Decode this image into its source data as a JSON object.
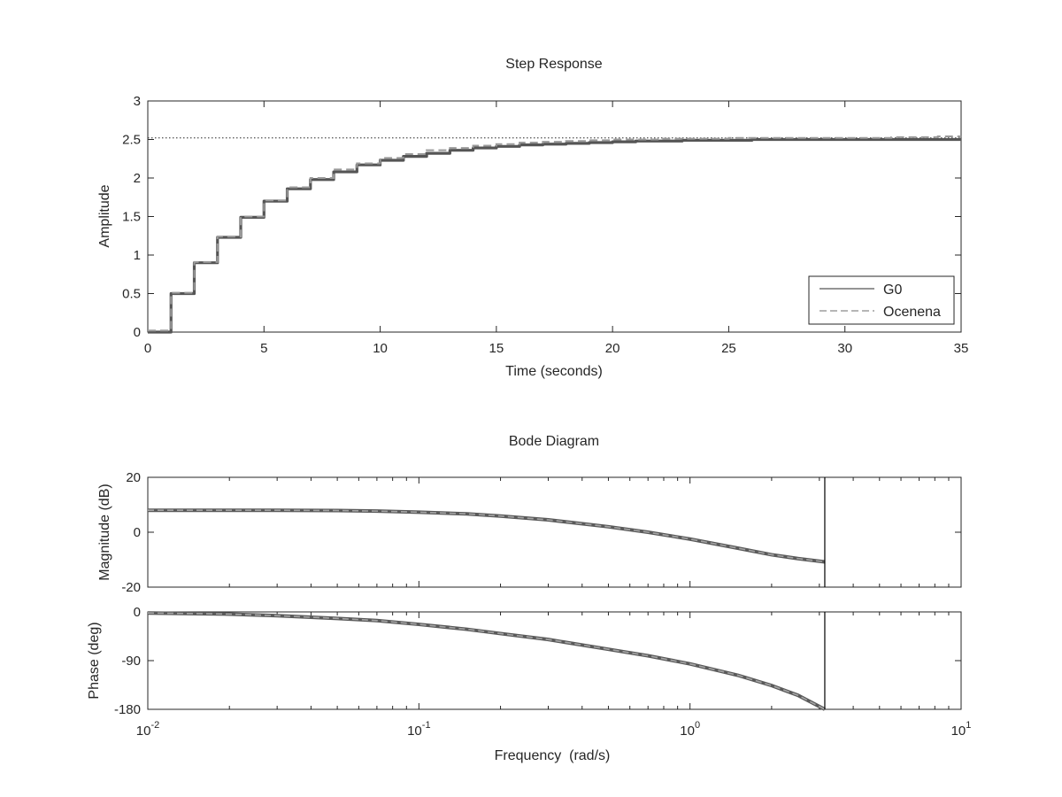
{
  "chart_data": [
    {
      "type": "line",
      "title": "Step Response",
      "xlabel": "Time (seconds)",
      "ylabel": "Amplitude",
      "xlim": [
        0,
        35
      ],
      "ylim": [
        0,
        3
      ],
      "xticks": [
        "0",
        "5",
        "10",
        "15",
        "20",
        "25",
        "30",
        "35"
      ],
      "yticks": [
        "0",
        "0.5",
        "1",
        "1.5",
        "2",
        "2.5",
        "3"
      ],
      "steady_state": 2.52,
      "step_style": "stairs",
      "legend": {
        "placement": "bottom-right",
        "entries": [
          "G0",
          "Ocenena"
        ]
      },
      "series": [
        {
          "name": "G0",
          "style": "solid",
          "x": [
            0,
            1,
            2,
            3,
            4,
            5,
            6,
            7,
            8,
            9,
            10,
            11,
            12,
            13,
            14,
            15,
            16,
            17,
            18,
            19,
            20,
            21,
            22,
            23,
            24,
            25,
            26,
            27,
            28,
            29,
            30,
            31,
            32,
            33,
            34,
            35
          ],
          "y": [
            0,
            0.5,
            0.9,
            1.23,
            1.49,
            1.7,
            1.86,
            1.98,
            2.08,
            2.17,
            2.23,
            2.28,
            2.32,
            2.36,
            2.39,
            2.41,
            2.43,
            2.44,
            2.45,
            2.46,
            2.47,
            2.48,
            2.48,
            2.49,
            2.49,
            2.49,
            2.5,
            2.5,
            2.5,
            2.5,
            2.5,
            2.5,
            2.5,
            2.5,
            2.5,
            2.5
          ]
        },
        {
          "name": "Ocenena",
          "style": "dashed",
          "x": [
            0,
            1,
            2,
            3,
            4,
            5,
            6,
            7,
            8,
            9,
            10,
            11,
            12,
            13,
            14,
            15,
            16,
            17,
            18,
            19,
            20,
            21,
            22,
            23,
            24,
            25,
            26,
            27,
            28,
            29,
            30,
            31,
            32,
            33,
            34,
            35
          ],
          "y": [
            0.02,
            0.51,
            0.91,
            1.24,
            1.5,
            1.71,
            1.88,
            2.0,
            2.11,
            2.19,
            2.26,
            2.31,
            2.36,
            2.39,
            2.42,
            2.44,
            2.46,
            2.47,
            2.48,
            2.49,
            2.5,
            2.5,
            2.51,
            2.51,
            2.51,
            2.52,
            2.52,
            2.52,
            2.52,
            2.52,
            2.52,
            2.52,
            2.53,
            2.53,
            2.54,
            2.55
          ]
        }
      ]
    },
    {
      "type": "line",
      "title": "Bode Diagram",
      "xlabel": "Frequency  (rad/s)",
      "xscale": "log",
      "xlim": [
        0.01,
        10
      ],
      "nyquist_frequency": 3.1416,
      "xtick_labels": [
        {
          "base": "10",
          "exp": "-2"
        },
        {
          "base": "10",
          "exp": "-1"
        },
        {
          "base": "10",
          "exp": "0"
        },
        {
          "base": "10",
          "exp": "1"
        }
      ],
      "magnitude": {
        "ylabel": "Magnitude (dB)",
        "ylim": [
          -20,
          20
        ],
        "yticks": [
          "20",
          "0",
          "-20"
        ],
        "series": [
          {
            "name": "G0",
            "style": "solid",
            "x": [
              0.01,
              0.02,
              0.03,
              0.05,
              0.07,
              0.1,
              0.15,
              0.2,
              0.3,
              0.5,
              0.7,
              1.0,
              1.5,
              2.0,
              2.5,
              3.1416
            ],
            "y": [
              8.0,
              8.0,
              8.0,
              7.9,
              7.7,
              7.3,
              6.7,
              5.9,
              4.5,
              2.0,
              0.0,
              -2.5,
              -5.8,
              -8.2,
              -9.6,
              -10.8
            ]
          },
          {
            "name": "Ocenena",
            "style": "dashed",
            "x": [
              0.01,
              0.02,
              0.03,
              0.05,
              0.07,
              0.1,
              0.15,
              0.2,
              0.3,
              0.5,
              0.7,
              1.0,
              1.5,
              2.0,
              2.5,
              3.1416
            ],
            "y": [
              8.0,
              8.0,
              8.0,
              7.9,
              7.7,
              7.3,
              6.7,
              5.9,
              4.5,
              2.0,
              0.0,
              -2.5,
              -5.8,
              -8.2,
              -9.6,
              -10.8
            ]
          }
        ]
      },
      "phase": {
        "ylabel": "Phase (deg)",
        "ylim": [
          -180,
          0
        ],
        "yticks": [
          "0",
          "-90",
          "-180"
        ],
        "series": [
          {
            "name": "G0",
            "style": "solid",
            "x": [
              0.01,
              0.02,
              0.03,
              0.05,
              0.07,
              0.1,
              0.15,
              0.2,
              0.3,
              0.5,
              0.7,
              1.0,
              1.5,
              2.0,
              2.5,
              3.1416
            ],
            "y": [
              -2,
              -4,
              -7,
              -12,
              -16,
              -23,
              -32,
              -40,
              -51,
              -69,
              -81,
              -96,
              -117,
              -136,
              -154,
              -180
            ]
          },
          {
            "name": "Ocenena",
            "style": "dashed",
            "x": [
              0.01,
              0.02,
              0.03,
              0.05,
              0.07,
              0.1,
              0.15,
              0.2,
              0.3,
              0.5,
              0.7,
              1.0,
              1.5,
              2.0,
              2.5,
              3.1416
            ],
            "y": [
              -2,
              -4,
              -7,
              -12,
              -16,
              -23,
              -32,
              -40,
              -51,
              -69,
              -81,
              -96,
              -117,
              -136,
              -154,
              -180
            ]
          }
        ]
      }
    }
  ]
}
